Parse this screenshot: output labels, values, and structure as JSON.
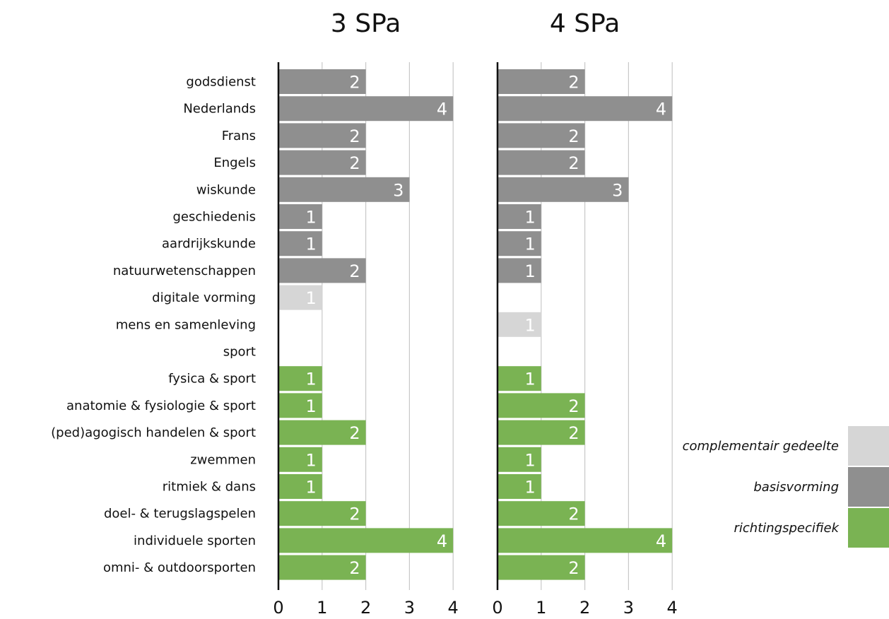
{
  "chart_data": {
    "type": "bar",
    "orientation": "horizontal",
    "categories": [
      "godsdienst",
      "Nederlands",
      "Frans",
      "Engels",
      "wiskunde",
      "geschiedenis",
      "aardrijkskunde",
      "natuurwetenschappen",
      "digitale vorming",
      "mens en samenleving",
      "sport",
      "fysica & sport",
      "anatomie & fysiologie & sport",
      "(ped)agogisch handelen & sport",
      "zwemmen",
      "ritmiek & dans",
      "doel- & terugslagspelen",
      "individuele sporten",
      "omni- & outdoorsporten"
    ],
    "groups": [
      "basisvorming",
      "basisvorming",
      "basisvorming",
      "basisvorming",
      "basisvorming",
      "basisvorming",
      "basisvorming",
      "basisvorming",
      "complementair gedeelte",
      "complementair gedeelte",
      "richtingspecifiek",
      "richtingspecifiek",
      "richtingspecifiek",
      "richtingspecifiek",
      "richtingspecifiek",
      "richtingspecifiek",
      "richtingspecifiek",
      "richtingspecifiek",
      "richtingspecifiek"
    ],
    "panels": [
      {
        "title": "3 SPa",
        "values": [
          2,
          4,
          2,
          2,
          3,
          1,
          1,
          2,
          1,
          0,
          0,
          1,
          1,
          2,
          1,
          1,
          2,
          4,
          2
        ]
      },
      {
        "title": "4 SPa",
        "values": [
          2,
          4,
          2,
          2,
          3,
          1,
          1,
          1,
          0,
          1,
          0,
          1,
          2,
          2,
          1,
          1,
          2,
          4,
          2
        ]
      }
    ],
    "xlim": [
      0,
      4
    ],
    "xticks": [
      "0",
      "1",
      "2",
      "3",
      "4"
    ],
    "grid": true,
    "legend": {
      "placement": "bottom-right",
      "entries": [
        {
          "label": "complementair gedeelte",
          "color": "#d6d6d6"
        },
        {
          "label": "basisvorming",
          "color": "#8f8f8f"
        },
        {
          "label": "richtingspecifiek",
          "color": "#7ab353"
        }
      ]
    }
  }
}
